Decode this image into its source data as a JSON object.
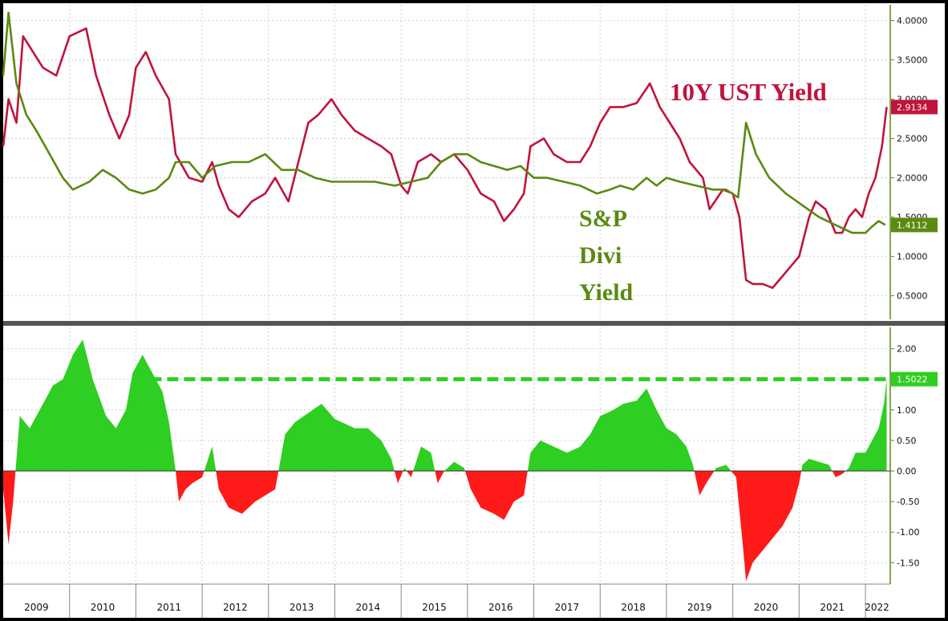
{
  "chart_data": [
    {
      "type": "line",
      "panel": "top",
      "ylim": [
        0.2,
        4.2
      ],
      "yticks": [
        "0.5000",
        "1.0000",
        "1.5000",
        "2.0000",
        "2.5000",
        "3.0000",
        "3.5000",
        "4.0000"
      ],
      "series": [
        {
          "name": "10Y UST Yield",
          "color": "#c0143c",
          "last_value": "2.9134",
          "points": [
            [
              2009.0,
              2.4
            ],
            [
              2009.08,
              3.0
            ],
            [
              2009.2,
              2.7
            ],
            [
              2009.3,
              3.8
            ],
            [
              2009.45,
              3.6
            ],
            [
              2009.6,
              3.4
            ],
            [
              2009.8,
              3.3
            ],
            [
              2010.0,
              3.8
            ],
            [
              2010.25,
              3.9
            ],
            [
              2010.4,
              3.3
            ],
            [
              2010.6,
              2.8
            ],
            [
              2010.75,
              2.5
            ],
            [
              2010.9,
              2.8
            ],
            [
              2011.0,
              3.4
            ],
            [
              2011.15,
              3.6
            ],
            [
              2011.3,
              3.3
            ],
            [
              2011.5,
              3.0
            ],
            [
              2011.6,
              2.3
            ],
            [
              2011.8,
              2.0
            ],
            [
              2012.0,
              1.95
            ],
            [
              2012.15,
              2.2
            ],
            [
              2012.25,
              1.9
            ],
            [
              2012.4,
              1.6
            ],
            [
              2012.55,
              1.5
            ],
            [
              2012.75,
              1.7
            ],
            [
              2012.95,
              1.8
            ],
            [
              2013.1,
              2.0
            ],
            [
              2013.3,
              1.7
            ],
            [
              2013.45,
              2.2
            ],
            [
              2013.6,
              2.7
            ],
            [
              2013.75,
              2.8
            ],
            [
              2013.95,
              3.0
            ],
            [
              2014.1,
              2.8
            ],
            [
              2014.3,
              2.6
            ],
            [
              2014.5,
              2.5
            ],
            [
              2014.7,
              2.4
            ],
            [
              2014.85,
              2.3
            ],
            [
              2015.0,
              1.9
            ],
            [
              2015.1,
              1.8
            ],
            [
              2015.25,
              2.2
            ],
            [
              2015.45,
              2.3
            ],
            [
              2015.6,
              2.2
            ],
            [
              2015.8,
              2.3
            ],
            [
              2016.0,
              2.1
            ],
            [
              2016.2,
              1.8
            ],
            [
              2016.4,
              1.7
            ],
            [
              2016.55,
              1.45
            ],
            [
              2016.7,
              1.6
            ],
            [
              2016.85,
              1.8
            ],
            [
              2016.95,
              2.4
            ],
            [
              2017.15,
              2.5
            ],
            [
              2017.3,
              2.3
            ],
            [
              2017.5,
              2.2
            ],
            [
              2017.7,
              2.2
            ],
            [
              2017.85,
              2.4
            ],
            [
              2018.0,
              2.7
            ],
            [
              2018.15,
              2.9
            ],
            [
              2018.35,
              2.9
            ],
            [
              2018.55,
              2.95
            ],
            [
              2018.75,
              3.2
            ],
            [
              2018.9,
              2.9
            ],
            [
              2019.05,
              2.7
            ],
            [
              2019.2,
              2.5
            ],
            [
              2019.35,
              2.2
            ],
            [
              2019.55,
              2.0
            ],
            [
              2019.65,
              1.6
            ],
            [
              2019.85,
              1.85
            ],
            [
              2020.0,
              1.8
            ],
            [
              2020.1,
              1.5
            ],
            [
              2020.2,
              0.7
            ],
            [
              2020.3,
              0.65
            ],
            [
              2020.45,
              0.65
            ],
            [
              2020.6,
              0.6
            ],
            [
              2020.7,
              0.7
            ],
            [
              2020.85,
              0.85
            ],
            [
              2021.0,
              1.0
            ],
            [
              2021.15,
              1.5
            ],
            [
              2021.25,
              1.7
            ],
            [
              2021.4,
              1.6
            ],
            [
              2021.55,
              1.3
            ],
            [
              2021.65,
              1.3
            ],
            [
              2021.75,
              1.5
            ],
            [
              2021.85,
              1.6
            ],
            [
              2021.95,
              1.5
            ],
            [
              2022.05,
              1.8
            ],
            [
              2022.15,
              2.0
            ],
            [
              2022.25,
              2.4
            ],
            [
              2022.32,
              2.9
            ]
          ]
        },
        {
          "name": "S&P Divi Yield",
          "color": "#5a8a12",
          "last_value": "1.4112",
          "points": [
            [
              2009.0,
              3.3
            ],
            [
              2009.08,
              4.1
            ],
            [
              2009.2,
              3.2
            ],
            [
              2009.35,
              2.8
            ],
            [
              2009.5,
              2.6
            ],
            [
              2009.7,
              2.3
            ],
            [
              2009.9,
              2.0
            ],
            [
              2010.05,
              1.85
            ],
            [
              2010.3,
              1.95
            ],
            [
              2010.5,
              2.1
            ],
            [
              2010.7,
              2.0
            ],
            [
              2010.9,
              1.85
            ],
            [
              2011.1,
              1.8
            ],
            [
              2011.3,
              1.85
            ],
            [
              2011.5,
              2.0
            ],
            [
              2011.6,
              2.2
            ],
            [
              2011.8,
              2.2
            ],
            [
              2012.0,
              2.0
            ],
            [
              2012.2,
              2.15
            ],
            [
              2012.45,
              2.2
            ],
            [
              2012.7,
              2.2
            ],
            [
              2012.95,
              2.3
            ],
            [
              2013.2,
              2.1
            ],
            [
              2013.45,
              2.1
            ],
            [
              2013.7,
              2.0
            ],
            [
              2013.95,
              1.95
            ],
            [
              2014.3,
              1.95
            ],
            [
              2014.6,
              1.95
            ],
            [
              2014.9,
              1.9
            ],
            [
              2015.15,
              1.95
            ],
            [
              2015.4,
              2.0
            ],
            [
              2015.6,
              2.2
            ],
            [
              2015.8,
              2.3
            ],
            [
              2016.0,
              2.3
            ],
            [
              2016.2,
              2.2
            ],
            [
              2016.4,
              2.15
            ],
            [
              2016.6,
              2.1
            ],
            [
              2016.8,
              2.15
            ],
            [
              2017.0,
              2.0
            ],
            [
              2017.2,
              2.0
            ],
            [
              2017.45,
              1.95
            ],
            [
              2017.7,
              1.9
            ],
            [
              2017.95,
              1.8
            ],
            [
              2018.15,
              1.85
            ],
            [
              2018.3,
              1.9
            ],
            [
              2018.5,
              1.85
            ],
            [
              2018.7,
              2.0
            ],
            [
              2018.85,
              1.9
            ],
            [
              2019.0,
              2.0
            ],
            [
              2019.2,
              1.95
            ],
            [
              2019.45,
              1.9
            ],
            [
              2019.7,
              1.85
            ],
            [
              2019.9,
              1.85
            ],
            [
              2020.08,
              1.75
            ],
            [
              2020.2,
              2.7
            ],
            [
              2020.35,
              2.3
            ],
            [
              2020.55,
              2.0
            ],
            [
              2020.8,
              1.8
            ],
            [
              2021.05,
              1.65
            ],
            [
              2021.3,
              1.5
            ],
            [
              2021.55,
              1.4
            ],
            [
              2021.8,
              1.3
            ],
            [
              2022.0,
              1.3
            ],
            [
              2022.1,
              1.38
            ],
            [
              2022.2,
              1.45
            ],
            [
              2022.3,
              1.4
            ]
          ]
        }
      ],
      "annotations": [
        {
          "text": "10Y UST Yield",
          "color": "#c0143c"
        },
        {
          "lines": [
            "S&P",
            "Divi",
            "Yield"
          ],
          "color": "#5a8a12"
        }
      ]
    },
    {
      "type": "area",
      "panel": "bottom",
      "ylim": [
        -1.85,
        2.35
      ],
      "yticks": [
        "-1.50",
        "-1.00",
        "-0.50",
        "0.00",
        "0.50",
        "1.00",
        "1.50",
        "2.00"
      ],
      "last_value": "1.5022",
      "positive_color": "#2fce22",
      "negative_color": "#ff1a1a",
      "reference_line": {
        "value": 1.5022,
        "from_x": 2011.0,
        "to_x": 2022.32,
        "color": "#2fce22"
      },
      "series": [
        {
          "name": "",
          "points": [
            [
              2009.0,
              -0.3
            ],
            [
              2009.08,
              -1.2
            ],
            [
              2009.15,
              -0.5
            ],
            [
              2009.25,
              0.9
            ],
            [
              2009.4,
              0.7
            ],
            [
              2009.55,
              1.0
            ],
            [
              2009.75,
              1.4
            ],
            [
              2009.9,
              1.5
            ],
            [
              2010.05,
              1.9
            ],
            [
              2010.2,
              2.15
            ],
            [
              2010.35,
              1.5
            ],
            [
              2010.55,
              0.9
            ],
            [
              2010.7,
              0.7
            ],
            [
              2010.85,
              1.0
            ],
            [
              2010.95,
              1.6
            ],
            [
              2011.1,
              1.9
            ],
            [
              2011.25,
              1.6
            ],
            [
              2011.4,
              1.3
            ],
            [
              2011.5,
              0.8
            ],
            [
              2011.6,
              0.0
            ],
            [
              2011.65,
              -0.5
            ],
            [
              2011.75,
              -0.3
            ],
            [
              2011.85,
              -0.2
            ],
            [
              2012.0,
              -0.1
            ],
            [
              2012.15,
              0.4
            ],
            [
              2012.25,
              -0.3
            ],
            [
              2012.4,
              -0.6
            ],
            [
              2012.6,
              -0.7
            ],
            [
              2012.8,
              -0.5
            ],
            [
              2012.95,
              -0.4
            ],
            [
              2013.1,
              -0.3
            ],
            [
              2013.25,
              0.6
            ],
            [
              2013.4,
              0.8
            ],
            [
              2013.6,
              0.95
            ],
            [
              2013.8,
              1.1
            ],
            [
              2014.0,
              0.85
            ],
            [
              2014.3,
              0.7
            ],
            [
              2014.5,
              0.7
            ],
            [
              2014.7,
              0.5
            ],
            [
              2014.85,
              0.2
            ],
            [
              2014.95,
              -0.2
            ],
            [
              2015.05,
              0.05
            ],
            [
              2015.15,
              -0.1
            ],
            [
              2015.3,
              0.4
            ],
            [
              2015.45,
              0.3
            ],
            [
              2015.55,
              -0.2
            ],
            [
              2015.65,
              0.0
            ],
            [
              2015.8,
              0.15
            ],
            [
              2015.95,
              0.05
            ],
            [
              2016.05,
              -0.3
            ],
            [
              2016.2,
              -0.6
            ],
            [
              2016.4,
              -0.7
            ],
            [
              2016.55,
              -0.8
            ],
            [
              2016.7,
              -0.5
            ],
            [
              2016.85,
              -0.4
            ],
            [
              2016.95,
              0.3
            ],
            [
              2017.1,
              0.5
            ],
            [
              2017.3,
              0.4
            ],
            [
              2017.5,
              0.3
            ],
            [
              2017.7,
              0.4
            ],
            [
              2017.85,
              0.6
            ],
            [
              2018.0,
              0.9
            ],
            [
              2018.2,
              1.0
            ],
            [
              2018.35,
              1.1
            ],
            [
              2018.55,
              1.15
            ],
            [
              2018.7,
              1.35
            ],
            [
              2018.85,
              1.0
            ],
            [
              2019.0,
              0.7
            ],
            [
              2019.15,
              0.6
            ],
            [
              2019.3,
              0.4
            ],
            [
              2019.4,
              0.1
            ],
            [
              2019.5,
              -0.4
            ],
            [
              2019.6,
              -0.2
            ],
            [
              2019.75,
              0.05
            ],
            [
              2019.9,
              0.1
            ],
            [
              2020.05,
              -0.1
            ],
            [
              2020.15,
              -1.2
            ],
            [
              2020.2,
              -1.8
            ],
            [
              2020.3,
              -1.5
            ],
            [
              2020.45,
              -1.3
            ],
            [
              2020.6,
              -1.1
            ],
            [
              2020.75,
              -0.9
            ],
            [
              2020.9,
              -0.6
            ],
            [
              2021.0,
              -0.2
            ],
            [
              2021.05,
              0.1
            ],
            [
              2021.15,
              0.2
            ],
            [
              2021.3,
              0.15
            ],
            [
              2021.45,
              0.1
            ],
            [
              2021.55,
              -0.1
            ],
            [
              2021.65,
              -0.05
            ],
            [
              2021.75,
              0.05
            ],
            [
              2021.85,
              0.3
            ],
            [
              2022.0,
              0.3
            ],
            [
              2022.1,
              0.5
            ],
            [
              2022.2,
              0.7
            ],
            [
              2022.28,
              1.1
            ],
            [
              2022.32,
              1.5
            ]
          ]
        }
      ]
    }
  ],
  "x_axis": {
    "ticks": [
      "2009",
      "2010",
      "2011",
      "2012",
      "2013",
      "2014",
      "2015",
      "2016",
      "2017",
      "2018",
      "2019",
      "2020",
      "2021",
      "2022"
    ],
    "xlim": [
      2009.0,
      2022.35
    ]
  },
  "colors": {
    "background": "#ffffff",
    "frame": "#000000",
    "grid": "#cfcfcf"
  }
}
